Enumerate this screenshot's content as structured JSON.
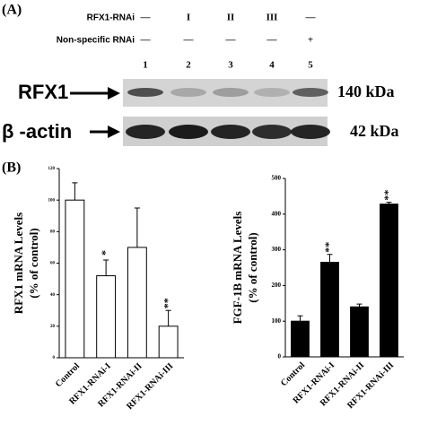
{
  "panel_a": {
    "label": "(A)",
    "row_labels": [
      "RFX1-RNAi",
      "Non-specific RNAi"
    ],
    "rows": [
      [
        "—",
        "I",
        "II",
        "III",
        "—"
      ],
      [
        "—",
        "—",
        "—",
        "—",
        "+"
      ]
    ],
    "lanes": [
      "1",
      "2",
      "3",
      "4",
      "5"
    ],
    "blots": [
      {
        "name": "RFX1",
        "size": "140 kDa"
      },
      {
        "name": "β -actin",
        "size": "42 kDa"
      }
    ]
  },
  "panel_b": {
    "label": "(B)"
  },
  "chart_data": [
    {
      "type": "bar",
      "ylabel": [
        "RFX1 mRNA Levels",
        "(% of control)"
      ],
      "categories": [
        "Control",
        "RFX1-RNAi-I",
        "RFX1-RNAi-II",
        "RFX1-RNAi-III"
      ],
      "values": [
        100,
        52,
        70,
        20
      ],
      "errors": [
        11,
        10,
        25,
        10
      ],
      "significance": [
        null,
        "*",
        null,
        "**"
      ],
      "color": "#ffffff",
      "ylim": [
        0,
        120
      ],
      "yticks": [
        0,
        20,
        40,
        60,
        80,
        100,
        120
      ]
    },
    {
      "type": "bar",
      "ylabel": [
        "FGF-1B mRNA Levels",
        "(% of control)"
      ],
      "categories": [
        "Control",
        "RFX1-RNAi-I",
        "RFX1-RNAi-II",
        "RFX1-RNAi-III"
      ],
      "values": [
        100,
        265,
        140,
        428
      ],
      "errors": [
        15,
        22,
        8,
        5
      ],
      "significance": [
        null,
        "**",
        null,
        "**"
      ],
      "color": "#000000",
      "ylim": [
        0,
        500
      ],
      "yticks": [
        0,
        100,
        200,
        300,
        400,
        500
      ]
    }
  ]
}
